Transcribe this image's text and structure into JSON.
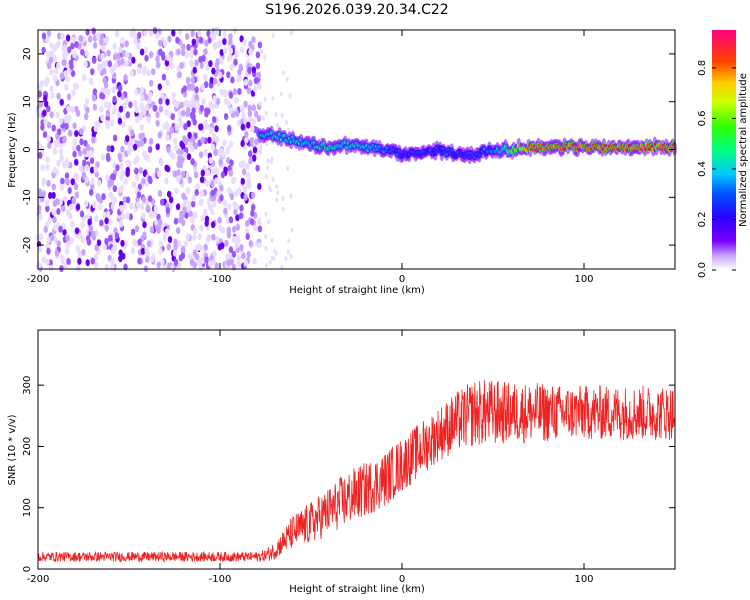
{
  "title": "S196.2026.039.20.34.C22",
  "chart_data": [
    {
      "type": "heatmap",
      "xlabel": "Height of straight line (km)",
      "ylabel": "Frequency (Hz)",
      "xlim": [
        -200,
        150
      ],
      "ylim": [
        -25,
        25
      ],
      "xticks": [
        -200,
        -100,
        0,
        100
      ],
      "yticks": [
        -20,
        -10,
        0,
        10,
        20
      ],
      "colorbar": {
        "label": "Normalized spectral amplitude",
        "range": [
          0,
          0.95
        ],
        "ticks": [
          0.0,
          0.2,
          0.4,
          0.6,
          0.8
        ],
        "colors": [
          "#ffffff",
          "#a96bff",
          "#5a00ff",
          "#0000ff",
          "#00c8ff",
          "#00ff00",
          "#ffff00",
          "#ff8000",
          "#ff0000",
          "#ff0080"
        ]
      },
      "noise_region_km": [
        -200,
        -78
      ],
      "signal_track": {
        "x": [
          -78,
          -70,
          -60,
          -50,
          -40,
          -30,
          -20,
          -10,
          0,
          10,
          20,
          30,
          40,
          50,
          60,
          70,
          80,
          90,
          100,
          110,
          120,
          130,
          140,
          150
        ],
        "freq": [
          3,
          3,
          2,
          1,
          0.5,
          1,
          0.5,
          0,
          -1,
          -1,
          0,
          -1,
          -1,
          0,
          0,
          0.5,
          0.5,
          0.5,
          0.5,
          0.5,
          0.5,
          0.5,
          0.5,
          0.5
        ],
        "amplitude": [
          0.4,
          0.45,
          0.45,
          0.45,
          0.5,
          0.45,
          0.45,
          0.35,
          0.3,
          0.3,
          0.3,
          0.3,
          0.3,
          0.35,
          0.6,
          0.85,
          0.85,
          0.85,
          0.85,
          0.85,
          0.85,
          0.85,
          0.85,
          0.85
        ]
      }
    },
    {
      "type": "line",
      "xlabel": "Height of straight line (km)",
      "ylabel": "SNR (10 * v/v)",
      "xlim": [
        -200,
        150
      ],
      "ylim": [
        0,
        390
      ],
      "xticks": [
        -200,
        -100,
        0,
        100
      ],
      "yticks": [
        0,
        100,
        200,
        300
      ],
      "series": [
        {
          "name": "SNR",
          "color": "#ee2222",
          "x": [
            -200,
            -180,
            -160,
            -140,
            -120,
            -100,
            -90,
            -80,
            -75,
            -70,
            -65,
            -60,
            -50,
            -40,
            -30,
            -20,
            -10,
            0,
            10,
            20,
            30,
            40,
            50,
            60,
            70,
            80,
            90,
            100,
            110,
            120,
            130,
            140,
            150
          ],
          "y": [
            20,
            20,
            20,
            20,
            20,
            20,
            20,
            20,
            22,
            30,
            45,
            60,
            75,
            95,
            115,
            130,
            145,
            170,
            195,
            220,
            240,
            255,
            255,
            255,
            255,
            255,
            255,
            255,
            255,
            255,
            255,
            255,
            255
          ],
          "noise_amplitude": [
            8,
            8,
            8,
            8,
            8,
            8,
            8,
            8,
            10,
            15,
            20,
            28,
            35,
            40,
            45,
            45,
            45,
            45,
            45,
            45,
            50,
            55,
            55,
            50,
            50,
            48,
            45,
            45,
            45,
            45,
            45,
            45,
            45
          ]
        }
      ]
    }
  ]
}
